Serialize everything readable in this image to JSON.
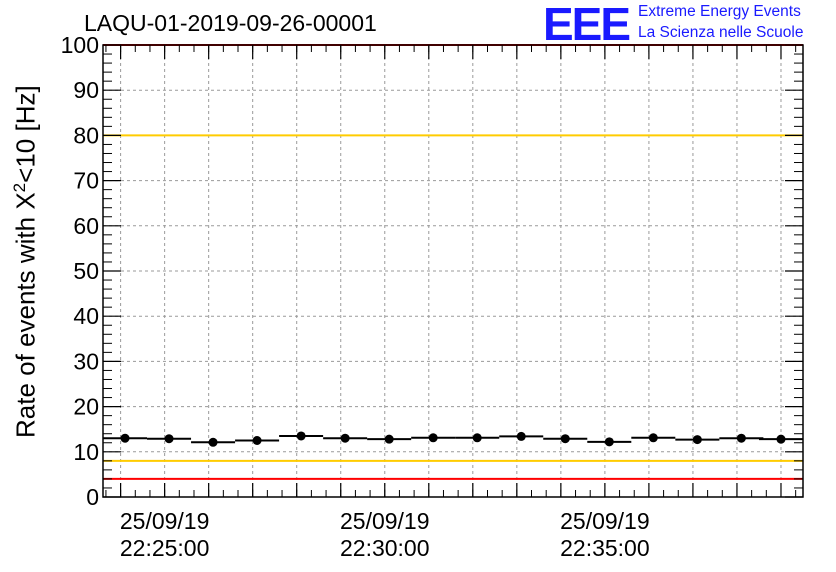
{
  "chart_data": {
    "type": "scatter",
    "title": "LAQU-01-2019-09-26-00001",
    "ylabel_main": "Rate of events with X",
    "ylabel_sup": "2",
    "ylabel_tail": "<10 [Hz]",
    "xlabel": "",
    "ylim": [
      0,
      100
    ],
    "yticks": [
      "0",
      "10",
      "20",
      "30",
      "40",
      "50",
      "60",
      "70",
      "80",
      "90",
      "100"
    ],
    "xlim_minutes": [
      -1.4,
      14.5
    ],
    "xticks": [
      {
        "minute": 0,
        "date": "25/09/19",
        "time": "22:25:00"
      },
      {
        "minute": 5,
        "date": "25/09/19",
        "time": "22:30:00"
      },
      {
        "minute": 10,
        "date": "25/09/19",
        "time": "22:35:00"
      }
    ],
    "grid": true,
    "series": [
      {
        "name": "rate",
        "x": [
          -0.9,
          0.1,
          1.1,
          2.1,
          3.1,
          4.1,
          5.1,
          6.1,
          7.1,
          8.1,
          9.1,
          10.1,
          11.1,
          12.1,
          13.1,
          14.0
        ],
        "y": [
          13.0,
          12.9,
          12.1,
          12.5,
          13.5,
          13.0,
          12.8,
          13.1,
          13.1,
          13.4,
          12.9,
          12.2,
          13.1,
          12.7,
          13.0,
          12.8
        ],
        "x_err": 0.5,
        "color": "#000000"
      }
    ],
    "reference_lines": [
      {
        "name": "red-upper",
        "y": 100,
        "color": "#ff0000"
      },
      {
        "name": "yellow-upper",
        "y": 80,
        "color": "#ffcc00"
      },
      {
        "name": "yellow-lower",
        "y": 8,
        "color": "#ffcc00"
      },
      {
        "name": "red-lower",
        "y": 4,
        "color": "#ff0000"
      }
    ]
  },
  "logo": {
    "mark": "EEE",
    "line1": "Extreme Energy Events",
    "line2": "La Scienza nelle Scuole",
    "color": "#1a1aff"
  }
}
